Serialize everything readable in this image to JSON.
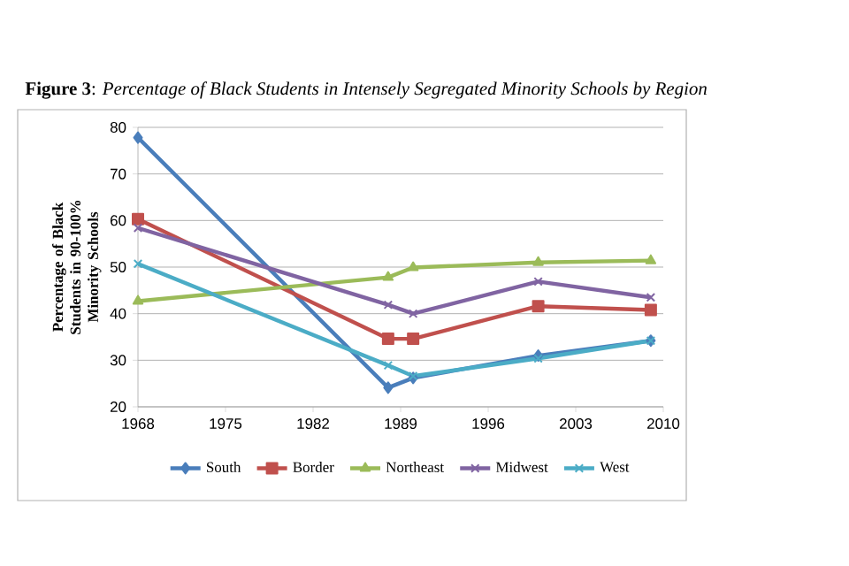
{
  "chart_data": {
    "type": "line",
    "title": "**Figure 3**: *Percentage of Black Students in Intensely Segregated Minority Schools by Region*",
    "ylabel": "Percentage of Black Students in 90-100% Minority Schools",
    "x": [
      1968,
      1988,
      1990,
      2000,
      2009
    ],
    "xlim": [
      1968,
      2010
    ],
    "xticks": [
      1968,
      1975,
      1982,
      1989,
      1996,
      2003,
      2010
    ],
    "ylim": [
      20,
      80
    ],
    "yticks": [
      20,
      30,
      40,
      50,
      60,
      70,
      80
    ],
    "grid": "y",
    "legend": "bottom",
    "line_style": "solid",
    "series": [
      {
        "name": "South",
        "color": "#4a7ebb",
        "marker": "diamond",
        "values": [
          77.8,
          24.1,
          26.2,
          31,
          34.2
        ]
      },
      {
        "name": "Border",
        "color": "#c0504d",
        "marker": "square",
        "values": [
          60.3,
          34.6,
          34.6,
          41.6,
          40.8
        ]
      },
      {
        "name": "Northeast",
        "color": "#9bbb59",
        "marker": "triangle",
        "values": [
          42.7,
          47.8,
          49.9,
          51,
          51.4
        ]
      },
      {
        "name": "Midwest",
        "color": "#8064a2",
        "marker": "cross",
        "values": [
          58.4,
          41.9,
          40,
          46.9,
          43.5
        ]
      },
      {
        "name": "West",
        "color": "#4bacc6",
        "marker": "cross",
        "values": [
          50.7,
          28.9,
          26.6,
          30.4,
          34.2
        ]
      }
    ]
  }
}
